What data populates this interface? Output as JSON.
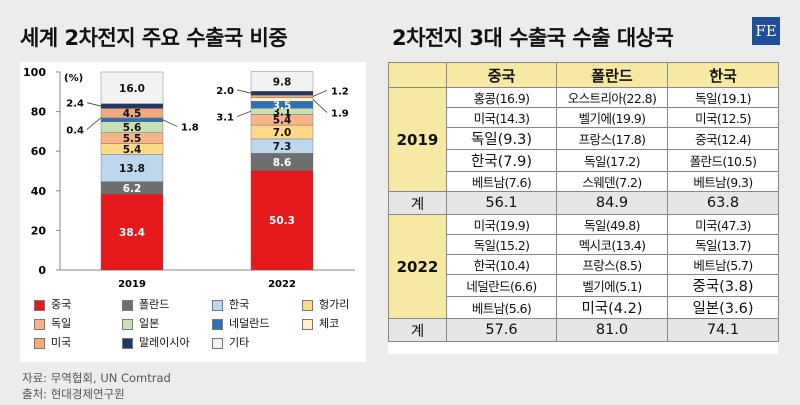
{
  "left_title": "세계 2차전지 주요 수출국 비중",
  "right_title": "2차전지 3대 수출국 수출 대상국",
  "logo": "FE",
  "source": [
    "자료: 무역협회, UN Comtrad",
    "출처: 현대경제연구원"
  ],
  "chart_data": {
    "type": "bar",
    "stacked": true,
    "unit_label": "(%)",
    "categories": [
      "2019",
      "2022"
    ],
    "ylim": [
      0,
      100
    ],
    "yticks": [
      0,
      20,
      40,
      60,
      80,
      100
    ],
    "series": [
      {
        "name": "중국",
        "color": "#e5191c",
        "values": [
          38.4,
          50.3
        ]
      },
      {
        "name": "폴란드",
        "color": "#6f6f6f",
        "values": [
          6.2,
          8.6
        ]
      },
      {
        "name": "한국",
        "color": "#bcd6ee",
        "values": [
          13.8,
          7.3
        ]
      },
      {
        "name": "헝가리",
        "color": "#ffd98a",
        "values": [
          5.4,
          7.0
        ]
      },
      {
        "name": "독일",
        "color": "#f7b48a",
        "values": [
          5.5,
          5.4
        ]
      },
      {
        "name": "일본",
        "color": "#c7e0b5",
        "values": [
          5.6,
          3.1
        ]
      },
      {
        "name": "네덜란드",
        "color": "#2e70b8",
        "values": [
          1.8,
          3.5
        ]
      },
      {
        "name": "체코",
        "color": "#fff1c7",
        "values": [
          0.4,
          1.9
        ]
      },
      {
        "name": "미국",
        "color": "#f4a97c",
        "values": [
          4.5,
          1.2
        ]
      },
      {
        "name": "말레이시아",
        "color": "#1f3864",
        "values": [
          2.4,
          2.0
        ]
      },
      {
        "name": "기타",
        "color": "#f2f2f2",
        "values": [
          16.0,
          9.8
        ]
      }
    ],
    "value_labels": {
      "2019": [
        "38.4",
        "6.2",
        "13.8",
        "5.4",
        "5.5",
        "5.6",
        "1.8",
        "0.4",
        "4.5",
        "2.4",
        "16.0"
      ],
      "2022": [
        "50.3",
        "8.6",
        "7.3",
        "7.0",
        "5.4",
        "3.1",
        "3.5",
        "1.9",
        "1.2",
        "2.0",
        "9.8"
      ]
    }
  },
  "table": {
    "headers": [
      "",
      "중국",
      "폴란드",
      "한국"
    ],
    "blocks": [
      {
        "year": "2019",
        "rows": [
          [
            "홍콩(16.9)",
            "오스트리아(22.8)",
            "독일(19.1)"
          ],
          [
            "미국(14.3)",
            "벨기에(19.9)",
            "미국(12.5)"
          ],
          [
            "독일(9.3)",
            "프랑스(17.8)",
            "중국(12.4)"
          ],
          [
            "한국(7.9)",
            "독일(17.2)",
            "폴란드(10.5)"
          ],
          [
            "베트남(7.6)",
            "스웨덴(7.2)",
            "베트남(9.3)"
          ]
        ],
        "total_label": "계",
        "totals": [
          "56.1",
          "84.9",
          "63.8"
        ]
      },
      {
        "year": "2022",
        "rows": [
          [
            "미국(19.9)",
            "독일(49.8)",
            "미국(47.3)"
          ],
          [
            "독일(15.2)",
            "멕시코(13.4)",
            "독일(13.7)"
          ],
          [
            "한국(10.4)",
            "프랑스(8.5)",
            "베트남(5.7)"
          ],
          [
            "네덜란드(6.6)",
            "벨기에(5.1)",
            "중국(3.8)"
          ],
          [
            "베트남(5.6)",
            "미국(4.2)",
            "일본(3.6)"
          ]
        ],
        "total_label": "계",
        "totals": [
          "57.6",
          "81.0",
          "74.1"
        ]
      }
    ]
  }
}
